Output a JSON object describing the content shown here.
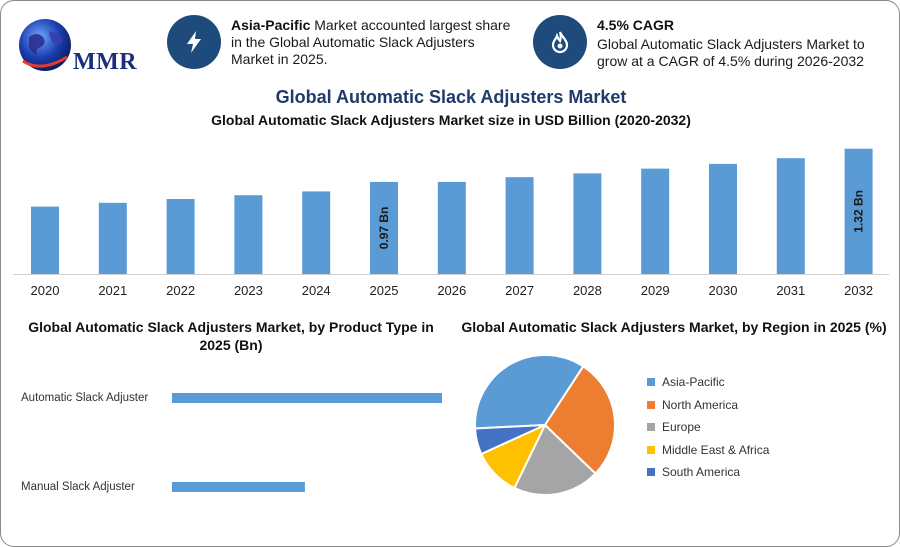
{
  "brand": {
    "logo_text": "MMR"
  },
  "header": {
    "info_left": {
      "bold": "Asia-Pacific",
      "text": " Market accounted largest share in the Global Automatic Slack Adjusters Market in 2025.",
      "icon": "lightning-bolt-icon"
    },
    "info_right": {
      "bold": "4.5% CAGR",
      "text": "Global Automatic Slack Adjusters Market to grow at a CAGR of 4.5% during 2026-2032",
      "icon": "flame-drop-icon"
    }
  },
  "colors": {
    "bar": "#5b9bd5",
    "icon_bg": "#1e4b7c",
    "title": "#1f3a6b"
  },
  "chart_data": [
    {
      "type": "bar",
      "title": "Global Automatic Slack Adjusters Market",
      "subtitle": "Global Automatic Slack Adjusters Market size in USD Billion (2020-2032)",
      "categories": [
        "2020",
        "2021",
        "2022",
        "2023",
        "2024",
        "2025",
        "2026",
        "2027",
        "2028",
        "2029",
        "2030",
        "2031",
        "2032"
      ],
      "values": [
        0.71,
        0.75,
        0.79,
        0.83,
        0.87,
        0.97,
        0.97,
        1.02,
        1.06,
        1.11,
        1.16,
        1.22,
        1.32
      ],
      "data_labels": [
        {
          "index": 5,
          "text": "0.97 Bn"
        },
        {
          "index": 12,
          "text": "1.32 Bn"
        }
      ],
      "ylim": [
        0,
        1.38
      ],
      "grid": false
    },
    {
      "type": "bar",
      "orientation": "horizontal",
      "title": "Global Automatic Slack Adjusters Market, by Product Type in 2025 (Bn)",
      "categories": [
        "Automatic Slack Adjuster",
        "Manual Slack Adjuster"
      ],
      "values": [
        0.65,
        0.32
      ],
      "xlim": [
        0,
        0.65
      ]
    },
    {
      "type": "pie",
      "title": "Global Automatic Slack Adjusters Market, by Region in 2025 (%)",
      "categories": [
        "Asia-Pacific",
        "North America",
        "Europe",
        "Middle East & Africa",
        "South America"
      ],
      "values": [
        35,
        28,
        20,
        11,
        6
      ],
      "colors": [
        "#5b9bd5",
        "#ed7d31",
        "#a5a5a5",
        "#ffc000",
        "#4472c4"
      ],
      "legend": "right"
    }
  ]
}
